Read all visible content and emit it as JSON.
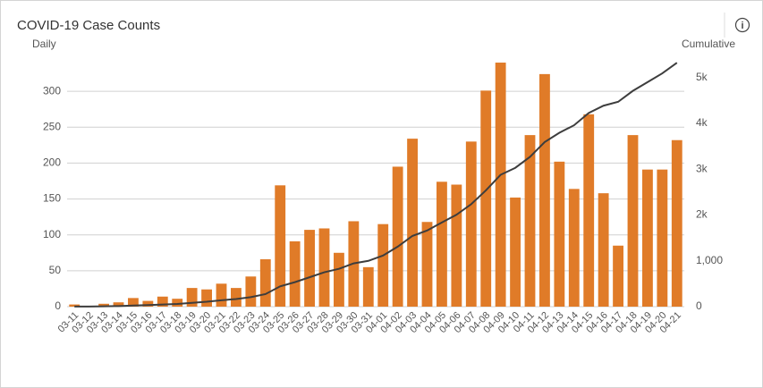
{
  "chart_data": {
    "type": "bar-line",
    "title": "COVID-19 Case Counts",
    "y_label": "Daily",
    "y2_label": "Cumulative",
    "categories": [
      "03-11",
      "03-12",
      "03-13",
      "03-14",
      "03-15",
      "03-16",
      "03-17",
      "03-18",
      "03-19",
      "03-20",
      "03-21",
      "03-22",
      "03-23",
      "03-24",
      "03-25",
      "03-26",
      "03-27",
      "03-28",
      "03-29",
      "03-30",
      "03-31",
      "04-01",
      "04-02",
      "04-03",
      "04-04",
      "04-05",
      "04-06",
      "04-07",
      "04-08",
      "04-09",
      "04-10",
      "04-11",
      "04-12",
      "04-13",
      "04-14",
      "04-15",
      "04-16",
      "04-17",
      "04-18",
      "04-19",
      "04-20",
      "04-21"
    ],
    "series": [
      {
        "type": "bar",
        "color": "#e07b28",
        "values": [
          3,
          0,
          4,
          6,
          12,
          8,
          14,
          11,
          26,
          24,
          32,
          26,
          42,
          66,
          169,
          91,
          107,
          109,
          75,
          119,
          55,
          115,
          195,
          234,
          118,
          174,
          170,
          230,
          301,
          340,
          152,
          239,
          324,
          202,
          164,
          268,
          158,
          85,
          239,
          191,
          191,
          232
        ]
      },
      {
        "type": "line",
        "axis": "y2",
        "color": "#3d3d3d",
        "values": [
          3,
          3,
          7,
          13,
          25,
          33,
          47,
          58,
          84,
          108,
          140,
          166,
          208,
          274,
          443,
          534,
          641,
          750,
          825,
          944,
          999,
          1114,
          1309,
          1543,
          1661,
          1835,
          2005,
          2235,
          2536,
          2876,
          3028,
          3267,
          3591,
          3793,
          3957,
          4225,
          4383,
          4468,
          4707,
          4898,
          5089,
          5321
        ]
      }
    ],
    "ylim": [
      0,
      350
    ],
    "yticks": [
      0,
      50,
      100,
      150,
      200,
      250,
      300
    ],
    "y2lim": [
      0,
      5480
    ],
    "y2ticks": [
      0,
      {
        "value": 1000,
        "label": "1,000"
      },
      {
        "value": 2000,
        "label": "2k"
      },
      {
        "value": 3000,
        "label": "3k"
      },
      {
        "value": 4000,
        "label": "4k"
      },
      {
        "value": 5000,
        "label": "5k"
      }
    ],
    "grid": true
  }
}
